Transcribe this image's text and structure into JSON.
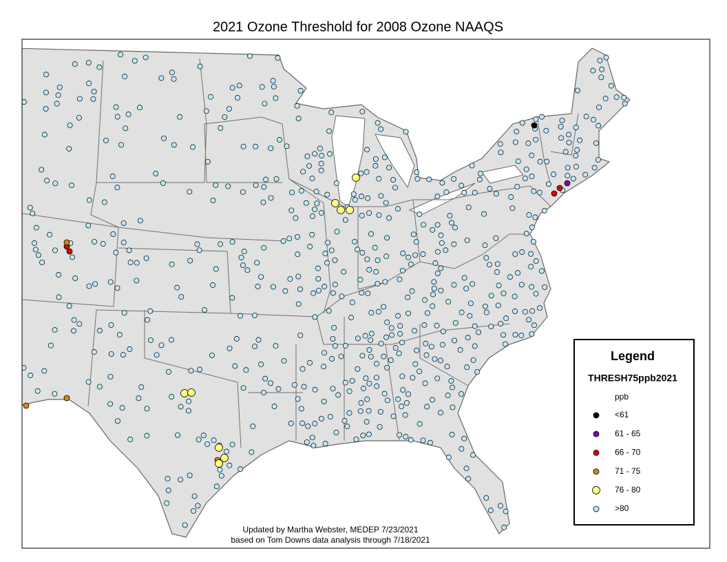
{
  "title": "2021 Ozone Threshold for 2008 Ozone NAAQS",
  "legend": {
    "title": "Legend",
    "field": "THRESH75ppb2021",
    "unit": "ppb",
    "classes": [
      {
        "label": "<61",
        "color": "#000000"
      },
      {
        "label": "61 - 65",
        "color": "#7a0aa0"
      },
      {
        "label": "66 - 70",
        "color": "#e00000"
      },
      {
        "label": "71 - 75",
        "color": "#d4880a"
      },
      {
        "label": "76 - 80",
        "color": "#ffff80"
      },
      {
        "label": ">80",
        "color": "#bee8ff"
      }
    ]
  },
  "footer": {
    "line1": "Updated by Martha Webster, MEDEP 7/23/2021",
    "line2": "based on Tom Downs data analysis through 7/18/2021"
  }
}
